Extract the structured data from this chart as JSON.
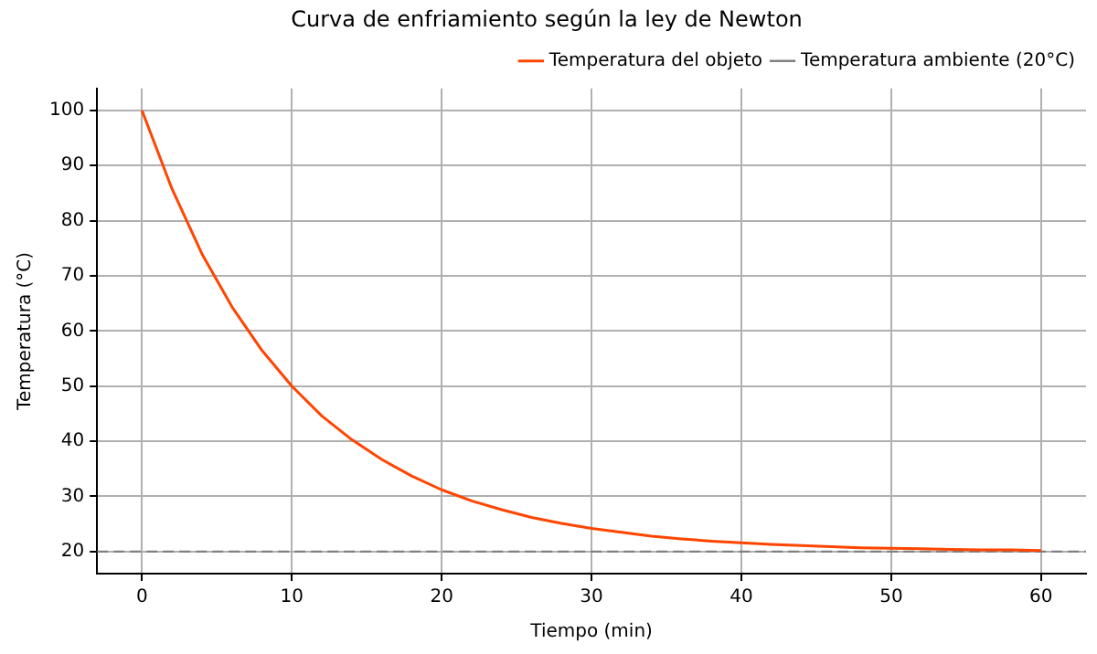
{
  "chart_data": {
    "type": "line",
    "title": "Curva de enfriamiento según la ley de Newton",
    "xlabel": "Tiempo (min)",
    "ylabel": "Temperatura (°C)",
    "x": [
      0,
      2,
      4,
      6,
      8,
      10,
      12,
      14,
      16,
      18,
      20,
      22,
      24,
      26,
      28,
      30,
      32,
      34,
      36,
      38,
      40,
      42,
      44,
      46,
      48,
      50,
      52,
      54,
      56,
      58,
      60
    ],
    "series": [
      {
        "name": "Temperatura del objeto",
        "color": "#ff4500",
        "values": [
          100,
          85.8,
          74.0,
          64.4,
          56.5,
          50.0,
          44.6,
          40.3,
          36.7,
          33.7,
          31.2,
          29.2,
          27.6,
          26.2,
          25.1,
          24.2,
          23.5,
          22.8,
          22.3,
          21.9,
          21.6,
          21.3,
          21.1,
          20.9,
          20.7,
          20.6,
          20.5,
          20.4,
          20.3,
          20.3,
          20.2
        ]
      }
    ],
    "ref_lines": [
      {
        "axis": "y",
        "value": 20,
        "label": "Temperatura ambiente (20°C)",
        "color": "#808080",
        "line_style": "dashed"
      }
    ],
    "xlim": [
      -3,
      63
    ],
    "ylim": [
      16,
      104
    ],
    "xticks": [
      0,
      10,
      20,
      30,
      40,
      50,
      60
    ],
    "yticks": [
      20,
      30,
      40,
      50,
      60,
      70,
      80,
      90,
      100
    ],
    "grid": true,
    "legend": "top right",
    "line_style": "solid",
    "marker": "none"
  }
}
